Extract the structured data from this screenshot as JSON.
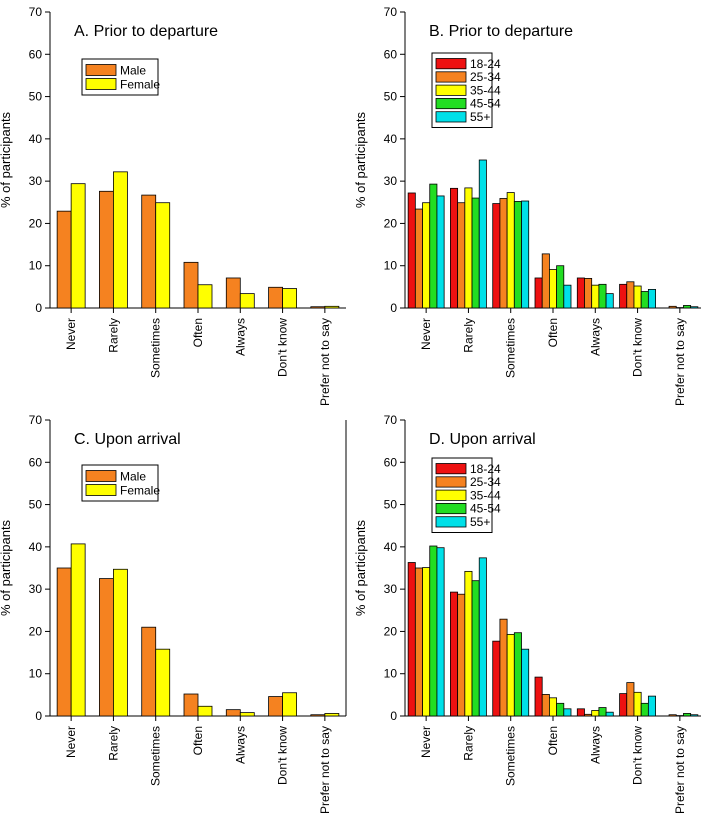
{
  "figure": {
    "ylabel": "% of participants",
    "categories": [
      "Never",
      "Rarely",
      "Sometimes",
      "Often",
      "Always",
      "Don't know",
      "Prefer not to say"
    ],
    "ylim": [
      0,
      70
    ],
    "yticks": [
      0,
      10,
      20,
      30,
      40,
      50,
      60,
      70
    ]
  },
  "colors": {
    "Male": "#f58220",
    "Female": "#ffff00",
    "18-24": "#ee1111",
    "25-34": "#f58220",
    "35-44": "#ffff00",
    "45-54": "#22dd22",
    "55+": "#00e0e8"
  },
  "chart_data": [
    {
      "type": "bar",
      "panel": "A",
      "title": "A. Prior to departure",
      "xlabel": "",
      "ylabel": "% of participants",
      "ylim": [
        0,
        70
      ],
      "legend_position": "top-left",
      "categories": [
        "Never",
        "Rarely",
        "Sometimes",
        "Often",
        "Always",
        "Don't know",
        "Prefer not to say"
      ],
      "series": [
        {
          "name": "Male",
          "values": [
            22.9,
            27.6,
            26.7,
            10.8,
            7.1,
            4.9,
            0.3
          ]
        },
        {
          "name": "Female",
          "values": [
            29.4,
            32.2,
            24.9,
            5.5,
            3.4,
            4.6,
            0.4
          ]
        }
      ]
    },
    {
      "type": "bar",
      "panel": "B",
      "title": "B. Prior to departure",
      "xlabel": "",
      "ylabel": "% of participants",
      "ylim": [
        0,
        70
      ],
      "legend_position": "top-left",
      "categories": [
        "Never",
        "Rarely",
        "Sometimes",
        "Often",
        "Always",
        "Don't know",
        "Prefer not to say"
      ],
      "series": [
        {
          "name": "18-24",
          "values": [
            27.2,
            28.3,
            24.7,
            7.1,
            7.1,
            5.6,
            0.0
          ]
        },
        {
          "name": "25-34",
          "values": [
            23.4,
            24.9,
            25.9,
            12.8,
            7.0,
            6.2,
            0.4
          ]
        },
        {
          "name": "35-44",
          "values": [
            24.9,
            28.4,
            27.3,
            9.1,
            5.4,
            5.2,
            0.1
          ]
        },
        {
          "name": "45-54",
          "values": [
            29.3,
            26.0,
            25.2,
            10.0,
            5.6,
            3.9,
            0.6
          ]
        },
        {
          "name": "55+",
          "values": [
            26.5,
            35.0,
            25.3,
            5.4,
            3.4,
            4.4,
            0.3
          ]
        }
      ]
    },
    {
      "type": "bar",
      "panel": "C",
      "title": "C. Upon arrival",
      "xlabel": "",
      "ylabel": "% of participants",
      "ylim": [
        0,
        70
      ],
      "legend_position": "top-left",
      "categories": [
        "Never",
        "Rarely",
        "Sometimes",
        "Often",
        "Always",
        "Don't know",
        "Prefer not to say"
      ],
      "series": [
        {
          "name": "Male",
          "values": [
            35.0,
            32.5,
            21.0,
            5.2,
            1.5,
            4.6,
            0.3
          ]
        },
        {
          "name": "Female",
          "values": [
            40.7,
            34.7,
            15.8,
            2.3,
            0.8,
            5.5,
            0.6
          ]
        }
      ]
    },
    {
      "type": "bar",
      "panel": "D",
      "title": "D. Upon arrival",
      "xlabel": "",
      "ylabel": "% of participants",
      "ylim": [
        0,
        70
      ],
      "legend_position": "top-left",
      "categories": [
        "Never",
        "Rarely",
        "Sometimes",
        "Often",
        "Always",
        "Don't know",
        "Prefer not to say"
      ],
      "series": [
        {
          "name": "18-24",
          "values": [
            36.3,
            29.3,
            17.7,
            9.2,
            1.7,
            5.3,
            0.0
          ]
        },
        {
          "name": "25-34",
          "values": [
            35.0,
            28.8,
            22.9,
            5.1,
            0.4,
            7.9,
            0.3
          ]
        },
        {
          "name": "35-44",
          "values": [
            35.1,
            34.2,
            19.3,
            4.3,
            1.3,
            5.6,
            0.1
          ]
        },
        {
          "name": "45-54",
          "values": [
            40.2,
            32.0,
            19.7,
            3.0,
            2.0,
            3.0,
            0.6
          ]
        },
        {
          "name": "55+",
          "values": [
            39.8,
            37.4,
            15.8,
            1.7,
            0.9,
            4.7,
            0.3
          ]
        }
      ]
    }
  ]
}
